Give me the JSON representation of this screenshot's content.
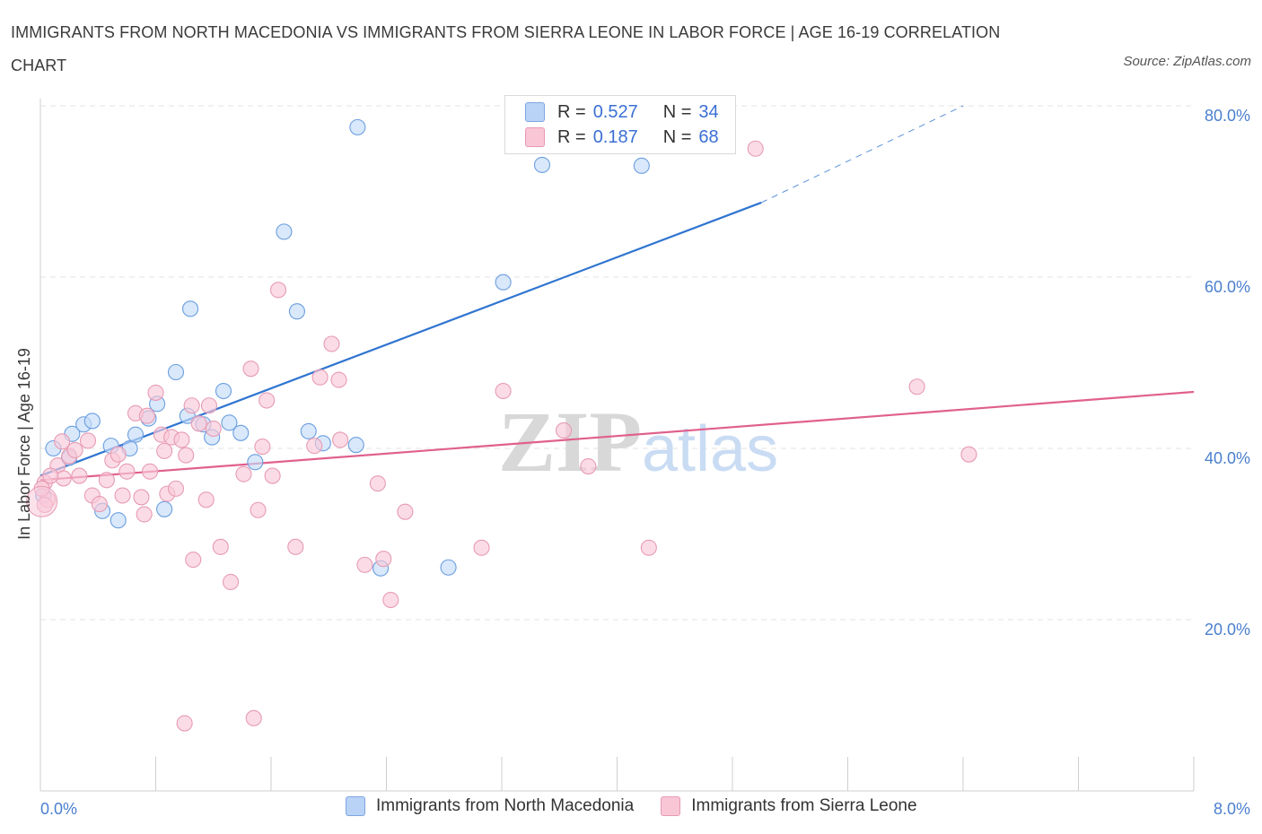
{
  "title": "IMMIGRANTS FROM NORTH MACEDONIA VS IMMIGRANTS FROM SIERRA LEONE IN LABOR FORCE | AGE 16-19 CORRELATION CHART",
  "source": "Source: ZipAtlas.com",
  "watermark": {
    "zip": "ZIP",
    "atlas": "atlas"
  },
  "legend": {
    "r_label": "R =",
    "n_label": "N =",
    "series": [
      {
        "r": "0.527",
        "n": "34",
        "color": "#b9d3f6",
        "border": "#7ea6e0"
      },
      {
        "r": "0.187",
        "n": "68",
        "color": "#f9c6d6",
        "border": "#e79bb3"
      }
    ]
  },
  "chart_data": {
    "type": "scatter",
    "title": "IMMIGRANTS FROM NORTH MACEDONIA VS IMMIGRANTS FROM SIERRA LEONE IN LABOR FORCE | AGE 16-19 CORRELATION CHART",
    "ylabel": "In Labor Force | Age 16-19",
    "xlabel": "",
    "xlim": [
      0,
      8
    ],
    "ylim": [
      0,
      80
    ],
    "x_tick_labels": [
      "0.0%",
      "8.0%"
    ],
    "y_tick_labels": [
      "20.0%",
      "40.0%",
      "60.0%",
      "80.0%"
    ],
    "y_ticks": [
      20,
      40,
      60,
      80
    ],
    "grid": true,
    "legend_position": "bottom",
    "series": [
      {
        "name": "Immigrants from North Macedonia",
        "color": "#6a9ee0",
        "fill": "#c5dbf7",
        "trend": {
          "x": [
            0.0,
            5.0
          ],
          "y": [
            36.8,
            68.7
          ],
          "color": "#2f74d0",
          "dashed_extension_to": [
            6.4,
            80.0
          ]
        },
        "points": [
          [
            0.02,
            34.5
          ],
          [
            0.09,
            40.0
          ],
          [
            0.2,
            38.9
          ],
          [
            0.22,
            41.7
          ],
          [
            0.3,
            42.8
          ],
          [
            0.36,
            43.2
          ],
          [
            0.43,
            32.7
          ],
          [
            0.49,
            40.3
          ],
          [
            0.54,
            31.6
          ],
          [
            0.62,
            40.0
          ],
          [
            0.66,
            41.6
          ],
          [
            0.75,
            43.5
          ],
          [
            0.81,
            45.2
          ],
          [
            0.86,
            32.9
          ],
          [
            0.94,
            48.9
          ],
          [
            1.02,
            43.8
          ],
          [
            1.04,
            56.3
          ],
          [
            1.13,
            42.8
          ],
          [
            1.19,
            41.3
          ],
          [
            1.27,
            46.7
          ],
          [
            1.31,
            43.0
          ],
          [
            1.39,
            41.8
          ],
          [
            1.49,
            38.4
          ],
          [
            1.69,
            65.3
          ],
          [
            1.78,
            56.0
          ],
          [
            1.86,
            42.0
          ],
          [
            1.96,
            40.6
          ],
          [
            2.19,
            40.4
          ],
          [
            2.2,
            77.5
          ],
          [
            2.36,
            26.0
          ],
          [
            2.83,
            26.1
          ],
          [
            3.21,
            59.4
          ],
          [
            3.48,
            73.1
          ],
          [
            4.17,
            73.0
          ]
        ]
      },
      {
        "name": "Immigrants from Sierra Leone",
        "color": "#e79bb3",
        "fill": "#f9c9d8",
        "trend": {
          "x": [
            0.0,
            8.0
          ],
          "y": [
            36.3,
            46.6
          ],
          "color": "#e0608d"
        },
        "points": [
          [
            0.03,
            36.0
          ],
          [
            0.05,
            34.0
          ],
          [
            0.12,
            38.0
          ],
          [
            0.16,
            36.5
          ],
          [
            0.2,
            39.1
          ],
          [
            0.24,
            39.8
          ],
          [
            0.27,
            36.8
          ],
          [
            0.33,
            40.9
          ],
          [
            0.36,
            34.5
          ],
          [
            0.41,
            33.5
          ],
          [
            0.46,
            36.3
          ],
          [
            0.5,
            38.6
          ],
          [
            0.54,
            39.3
          ],
          [
            0.57,
            34.5
          ],
          [
            0.6,
            37.3
          ],
          [
            0.66,
            44.1
          ],
          [
            0.7,
            34.3
          ],
          [
            0.72,
            32.3
          ],
          [
            0.74,
            43.8
          ],
          [
            0.76,
            37.3
          ],
          [
            0.8,
            46.5
          ],
          [
            0.84,
            41.6
          ],
          [
            0.86,
            39.7
          ],
          [
            0.88,
            34.7
          ],
          [
            0.91,
            41.3
          ],
          [
            0.94,
            35.3
          ],
          [
            0.98,
            41.0
          ],
          [
            1.01,
            39.2
          ],
          [
            1.05,
            45.0
          ],
          [
            1.06,
            27.0
          ],
          [
            1.1,
            42.9
          ],
          [
            1.15,
            34.0
          ],
          [
            1.17,
            45.0
          ],
          [
            1.2,
            42.3
          ],
          [
            1.25,
            28.5
          ],
          [
            1.32,
            24.4
          ],
          [
            1.41,
            37.0
          ],
          [
            1.46,
            49.3
          ],
          [
            1.54,
            40.2
          ],
          [
            1.51,
            32.8
          ],
          [
            1.57,
            45.6
          ],
          [
            1.61,
            36.8
          ],
          [
            1.65,
            58.5
          ],
          [
            1.77,
            28.5
          ],
          [
            1.9,
            40.3
          ],
          [
            1.94,
            48.3
          ],
          [
            2.02,
            52.2
          ],
          [
            2.07,
            48.0
          ],
          [
            2.08,
            41.0
          ],
          [
            2.25,
            26.4
          ],
          [
            2.34,
            35.9
          ],
          [
            2.38,
            27.1
          ],
          [
            2.43,
            22.3
          ],
          [
            2.53,
            32.6
          ],
          [
            3.06,
            28.4
          ],
          [
            3.21,
            46.7
          ],
          [
            3.63,
            42.1
          ],
          [
            3.8,
            37.9
          ],
          [
            4.22,
            28.4
          ],
          [
            4.96,
            75.0
          ],
          [
            6.08,
            47.2
          ],
          [
            6.44,
            39.3
          ],
          [
            1.0,
            7.9
          ],
          [
            1.48,
            8.5
          ],
          [
            0.01,
            35.3
          ],
          [
            0.03,
            33.4
          ],
          [
            0.07,
            36.8
          ],
          [
            0.15,
            40.8
          ]
        ]
      }
    ]
  },
  "bottom_legend": [
    "Immigrants from North Macedonia",
    "Immigrants from Sierra Leone"
  ]
}
